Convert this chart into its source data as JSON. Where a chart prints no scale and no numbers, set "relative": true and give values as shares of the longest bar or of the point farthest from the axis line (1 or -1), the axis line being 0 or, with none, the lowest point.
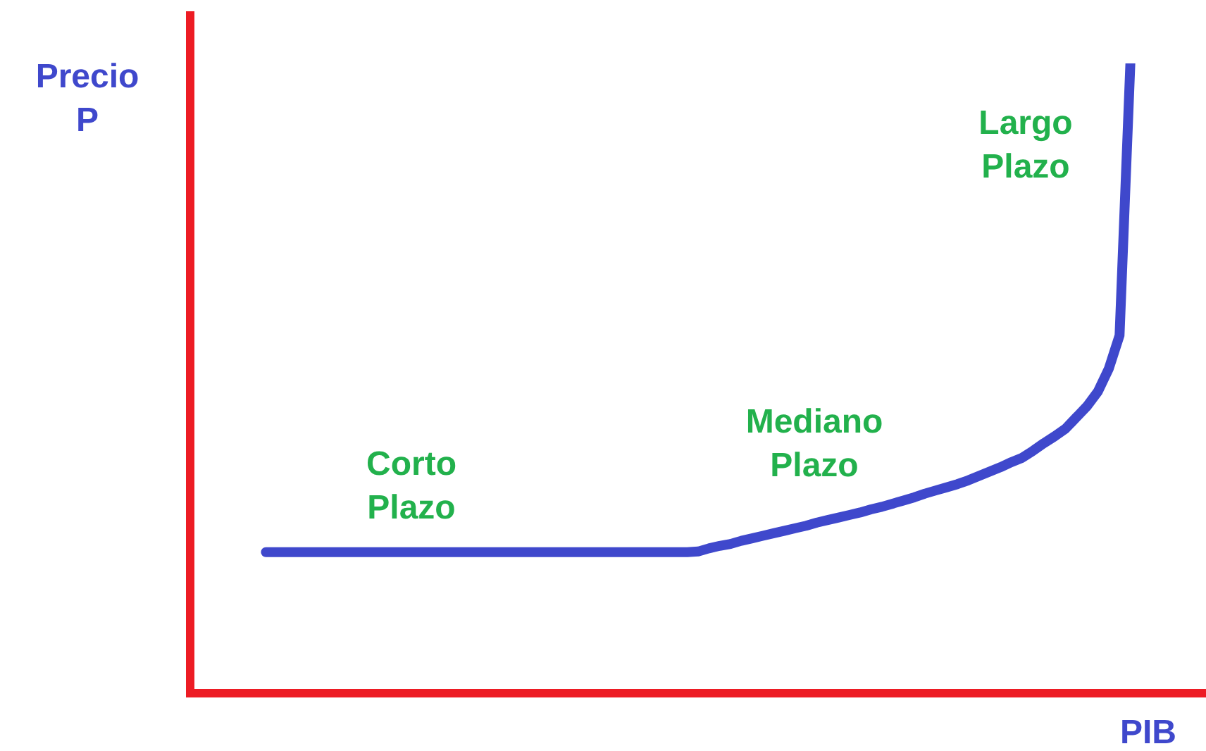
{
  "chart_data": {
    "type": "line",
    "relative": true,
    "marker": "none",
    "color": "#3f48cc",
    "xlabel": "PIB",
    "ylabel": "Precio P",
    "annotations": [
      "Corto Plazo",
      "Mediano Plazo",
      "Largo Plazo"
    ],
    "categories": [
      null,
      null,
      null,
      null,
      null,
      null,
      null,
      null,
      null,
      null,
      null,
      null,
      null,
      null,
      null,
      null,
      null,
      null,
      null,
      null,
      null,
      null,
      null,
      null,
      null,
      null,
      null,
      null,
      null,
      null,
      null,
      null,
      null,
      null,
      null,
      null,
      null,
      null,
      null,
      null,
      null,
      null,
      null,
      null,
      null,
      null,
      null,
      null,
      null,
      null,
      null,
      null,
      null,
      null,
      null,
      null,
      null,
      null,
      null,
      null,
      null,
      null,
      null,
      null,
      null,
      null,
      null,
      null,
      null,
      null,
      null,
      null,
      null,
      null,
      null,
      null,
      null,
      null,
      null,
      null,
      null,
      null,
      null,
      null,
      null,
      null,
      null,
      null,
      null,
      null,
      null,
      null,
      null,
      null,
      null
    ],
    "values": [
      null,
      null,
      null,
      null,
      null,
      null,
      null,
      0.224,
      0.224,
      0.224,
      0.224,
      0.224,
      0.224,
      0.224,
      0.224,
      0.224,
      0.224,
      0.224,
      0.224,
      0.224,
      0.224,
      0.224,
      0.224,
      0.224,
      0.224,
      0.224,
      0.224,
      0.224,
      0.224,
      0.224,
      0.224,
      0.224,
      0.224,
      0.224,
      0.224,
      0.224,
      0.224,
      0.224,
      0.224,
      0.224,
      0.224,
      0.224,
      0.224,
      0.224,
      0.224,
      0.224,
      0.224,
      0.225,
      0.23,
      0.234,
      0.237,
      0.242,
      0.246,
      0.25,
      0.254,
      0.258,
      0.262,
      0.266,
      0.271,
      0.275,
      0.279,
      0.283,
      0.287,
      0.292,
      0.296,
      0.301,
      0.306,
      0.311,
      0.317,
      0.322,
      0.327,
      0.332,
      0.338,
      0.345,
      0.352,
      0.359,
      0.367,
      0.374,
      0.385,
      0.397,
      0.408,
      0.42,
      0.438,
      0.456,
      0.479,
      0.515,
      0.568,
      1.0,
      null,
      null,
      null,
      null,
      null,
      null,
      null
    ]
  }
}
